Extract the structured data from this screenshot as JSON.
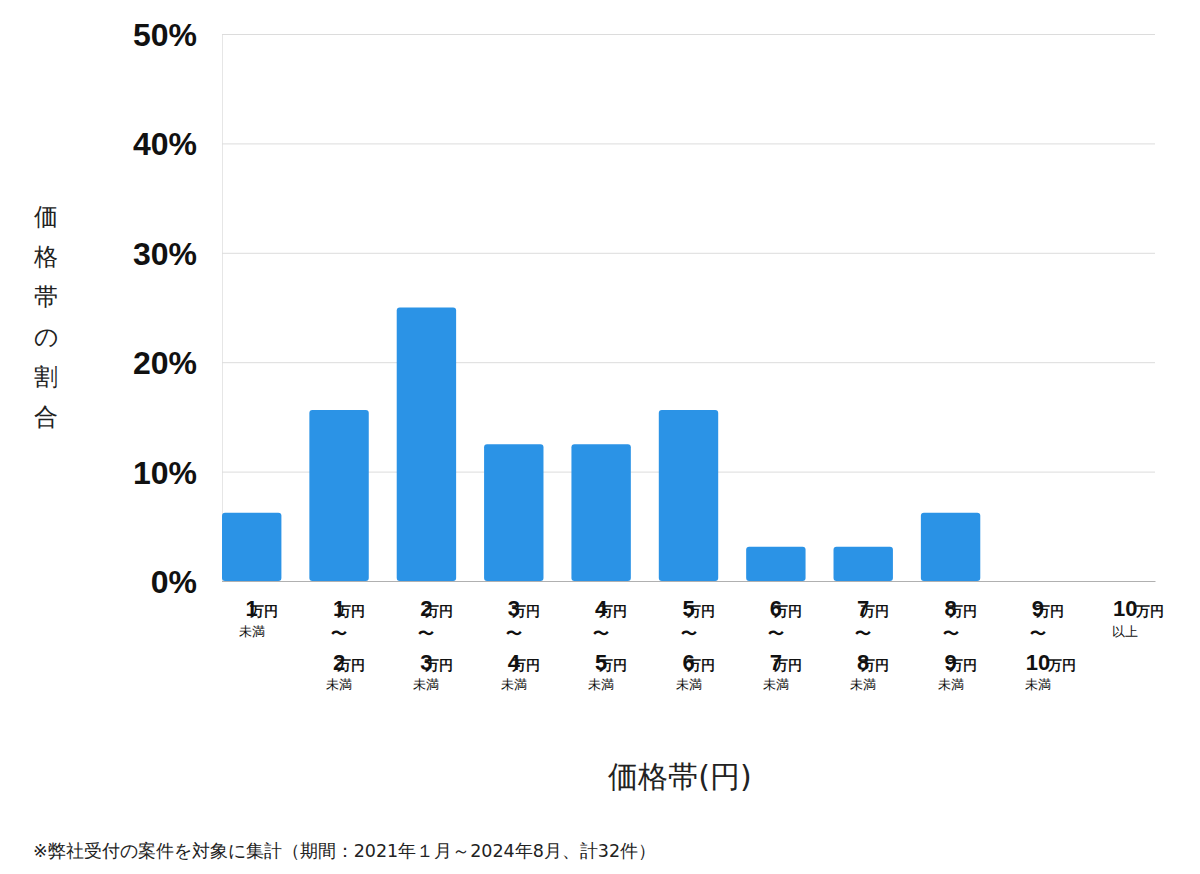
{
  "chart_data": {
    "type": "bar",
    "x_label": "価格帯(円)",
    "y_label": "価格帯の割合",
    "annotations": [
      "※弊社受付の案件を対象に集計（期間：2021年１月～2024年8月、計32件）"
    ],
    "categories": [
      "1万円未満",
      "1万円〜2万円未満",
      "2万円〜3万円未満",
      "3万円〜4万円未満",
      "4万円〜5万円未満",
      "5万円〜6万円未満",
      "6万円〜7万円未満",
      "7万円〜8万円未満",
      "8万円〜9万円未満",
      "9万円〜10万円未満",
      "10万円以上"
    ],
    "values": [
      6.25,
      15.625,
      25,
      12.5,
      12.5,
      15.625,
      3.125,
      3.125,
      6.25,
      0,
      0
    ],
    "color": "#2b93e6",
    "ylim": [
      0,
      50
    ],
    "yticks": [
      {
        "value": 0,
        "label": "0%"
      },
      {
        "value": 10,
        "label": "10%"
      },
      {
        "value": 20,
        "label": "20%"
      },
      {
        "value": 30,
        "label": "30%"
      },
      {
        "value": 40,
        "label": "40%"
      },
      {
        "value": 50,
        "label": "50%"
      }
    ],
    "grid": true
  }
}
